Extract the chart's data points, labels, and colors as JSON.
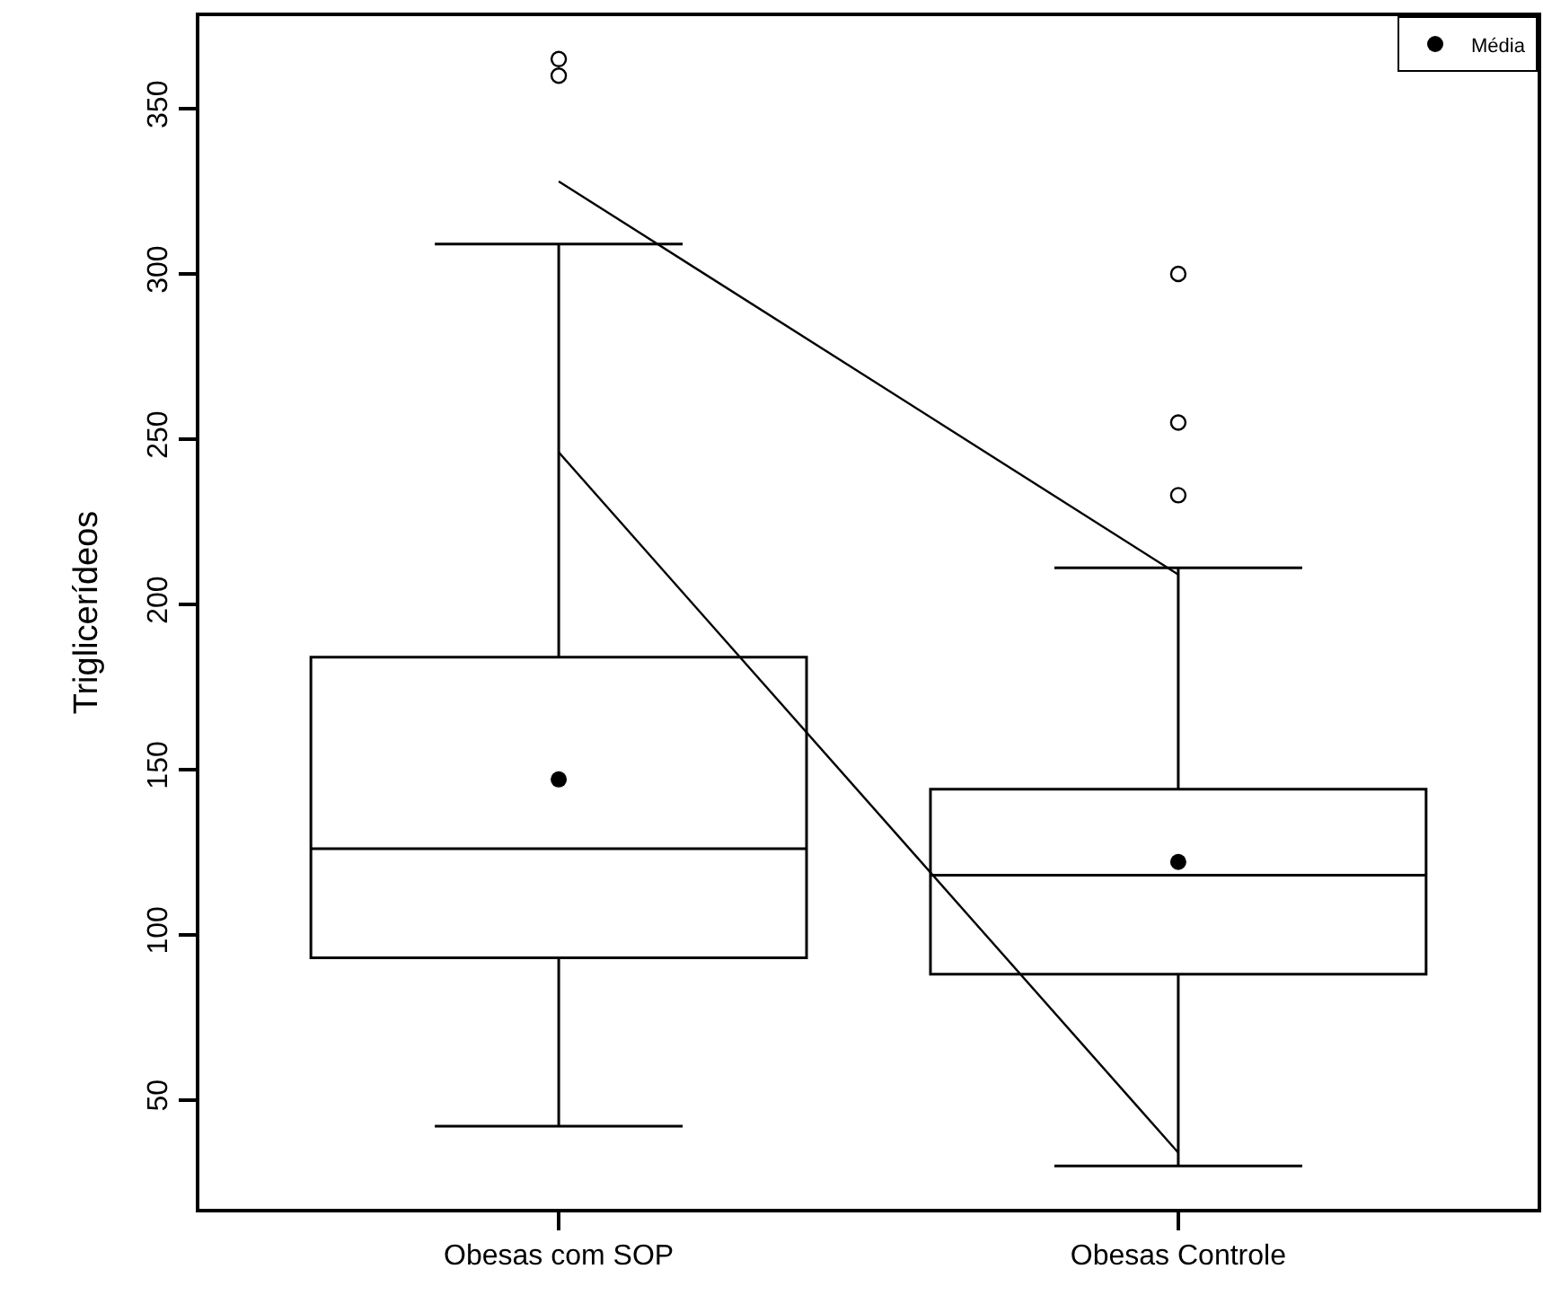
{
  "chart_data": {
    "type": "box",
    "ylabel": "Triglicerídeos",
    "categories": [
      "Obesas com SOP",
      "Obesas Controle"
    ],
    "ylim": [
      17,
      378
    ],
    "yticks": [
      50,
      100,
      150,
      200,
      250,
      300,
      350
    ],
    "grid": false,
    "legend": "top right",
    "series": [
      {
        "color": "#000000",
        "boxes": [
          {
            "low": 42,
            "q1": 93,
            "median": 126,
            "q3": 184,
            "high": 309,
            "outliers": [
              365,
              360
            ]
          },
          {
            "low": 30,
            "q1": 88,
            "median": 118,
            "q3": 144,
            "high": 211,
            "outliers": [
              300,
              255,
              233
            ]
          }
        ]
      },
      {
        "type": "scatter",
        "name": "Média",
        "color": "#000000",
        "marker": "circle",
        "x": [
          "Obesas com SOP",
          "Obesas Controle"
        ],
        "values": [
          147,
          122
        ]
      },
      {
        "type": "line",
        "color": "#000000",
        "values": [
          246,
          34
        ]
      },
      {
        "type": "line",
        "color": "#000000",
        "values": [
          328,
          209
        ]
      }
    ]
  }
}
